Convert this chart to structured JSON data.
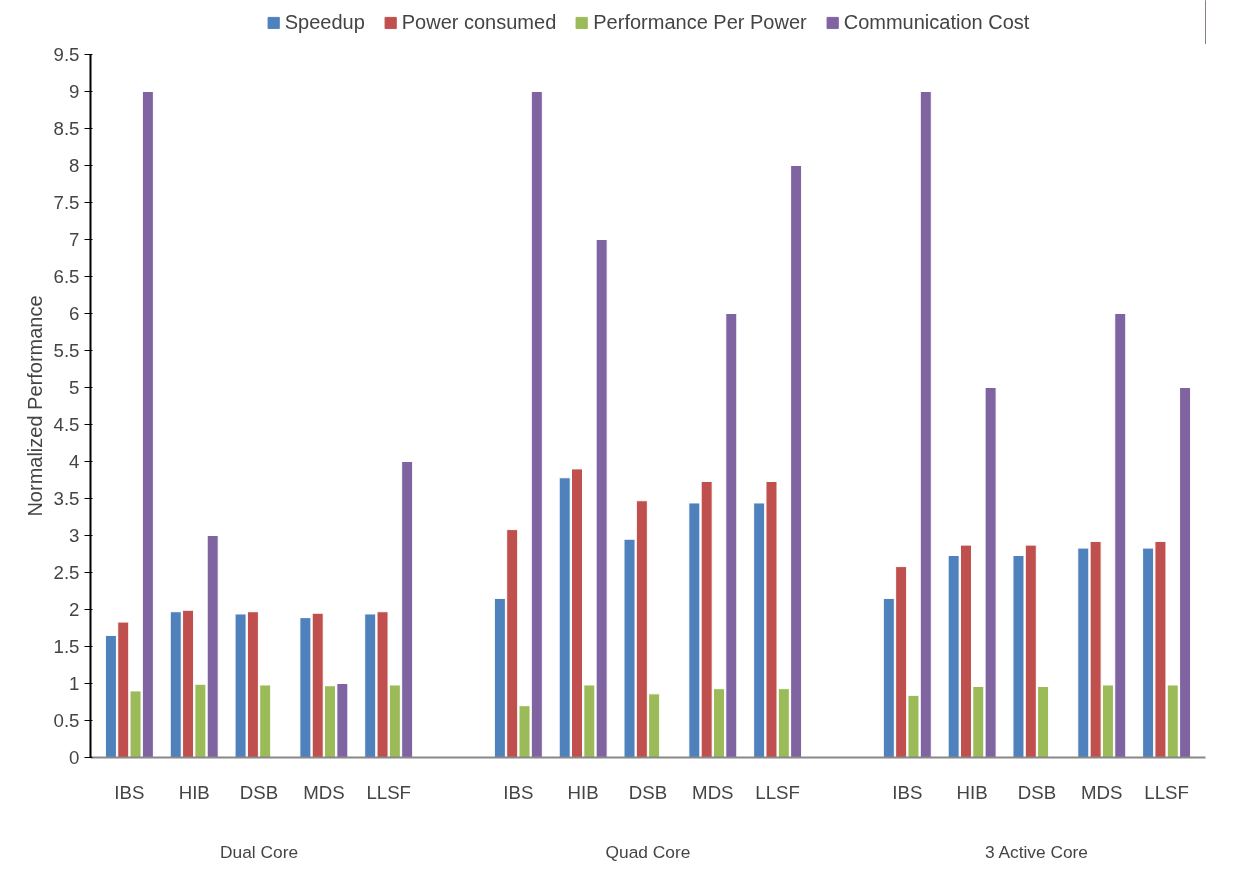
{
  "chart_data": {
    "type": "bar",
    "ylabel": "Normalized Performance",
    "categories": [
      "IBS",
      "HIB",
      "DSB",
      "MDS",
      "LLSF",
      null,
      "IBS",
      "HIB",
      "DSB",
      "MDS",
      "LLSF",
      null,
      "IBS",
      "HIB",
      "DSB",
      "MDS",
      "LLSF"
    ],
    "series": [
      {
        "name": "Speedup",
        "color": "#4f81bd",
        "values": [
          1.65,
          1.97,
          1.94,
          1.89,
          1.94,
          null,
          2.15,
          3.78,
          2.95,
          3.44,
          3.44,
          null,
          2.15,
          2.73,
          2.73,
          2.83,
          2.83
        ]
      },
      {
        "name": "Power consumed",
        "color": "#c0504d",
        "values": [
          1.83,
          1.99,
          1.97,
          1.95,
          1.97,
          null,
          3.08,
          3.9,
          3.47,
          3.73,
          3.73,
          null,
          2.58,
          2.87,
          2.87,
          2.92,
          2.92
        ]
      },
      {
        "name": "Performance Per Power",
        "color": "#9bbb59",
        "values": [
          0.9,
          0.99,
          0.98,
          0.97,
          0.98,
          null,
          0.7,
          0.98,
          0.86,
          0.93,
          0.93,
          null,
          0.84,
          0.96,
          0.96,
          0.98,
          0.98
        ]
      },
      {
        "name": "Communication Cost",
        "color": "#8064a2",
        "values": [
          9,
          3,
          null,
          1,
          4,
          null,
          9,
          7,
          null,
          6,
          8,
          null,
          9,
          5,
          null,
          6,
          5
        ]
      }
    ],
    "ylim": [
      0,
      9.5
    ],
    "yticks": [
      0,
      0.5,
      1,
      1.5,
      2,
      2.5,
      3,
      3.5,
      4,
      4.5,
      5,
      5.5,
      6,
      6.5,
      7,
      7.5,
      8,
      8.5,
      9,
      9.5
    ],
    "grid": false,
    "legend": "top",
    "annotations": [
      "Dual Core",
      "Quad Core",
      "3 Active Core"
    ]
  }
}
